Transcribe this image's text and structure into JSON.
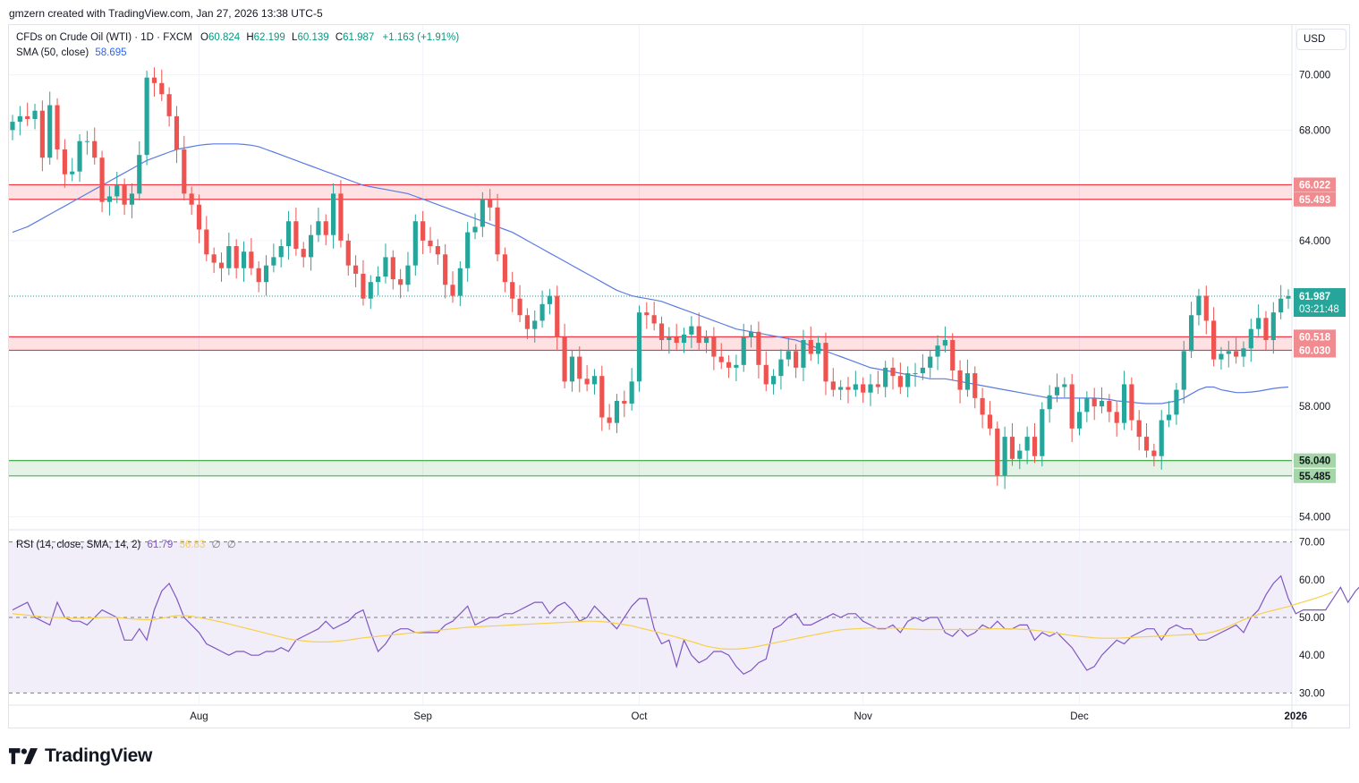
{
  "header": {
    "credit": "gmzern created with TradingView.com, Jan 27, 2026 13:38 UTC-5"
  },
  "legend": {
    "symbol": "CFDs on Crude Oil (WTI) · 1D · FXCM",
    "o_label": "O",
    "o_value": "60.824",
    "h_label": "H",
    "h_value": "62.199",
    "l_label": "L",
    "l_value": "60.139",
    "c_label": "C",
    "c_value": "61.987",
    "change": "+1.163 (+1.91%)",
    "sma_label": "SMA (50, close)",
    "sma_value": "58.695",
    "rsi_label": "RSI (14, close, SMA, 14, 2)",
    "rsi_value": "61.79",
    "rsi_ma_value": "56.83",
    "rsi_extra_1": "∅",
    "rsi_extra_2": "∅"
  },
  "currency": "USD",
  "logo_text": "TradingView",
  "colors": {
    "up": "#26a69a",
    "down": "#ef5350",
    "sma": "#5b7be3",
    "rsi": "#7e57c2",
    "rsi_ma": "#f7d04b",
    "resistance_zone": "#f23645",
    "support_zone": "#4caf50",
    "price_badge": "#26a69a"
  },
  "price_badge": {
    "price": "61.987",
    "countdown": "03:21:48"
  },
  "chart_data": [
    {
      "type": "candlestick",
      "symbol": "WTI",
      "ylim": [
        53.6,
        71.8
      ],
      "yticks": [
        "54.000",
        "56.000",
        "58.000",
        "60.000",
        "62.000",
        "64.000",
        "66.000",
        "68.000",
        "70.000"
      ],
      "xticks": [
        "Aug",
        "Sep",
        "Oct",
        "Nov",
        "Dec",
        "2026"
      ],
      "xtick_index": [
        25,
        55,
        84,
        114,
        143,
        172
      ],
      "grid": true,
      "zones": [
        {
          "kind": "resistance",
          "low": 65.493,
          "high": 66.022,
          "low_label": "65.493",
          "high_label": "66.022"
        },
        {
          "kind": "resistance",
          "low": 60.03,
          "high": 60.518,
          "low_label": "60.030",
          "high_label": "60.518"
        },
        {
          "kind": "support",
          "low": 55.485,
          "high": 56.04,
          "low_label": "55.485",
          "high_label": "56.040"
        }
      ],
      "last_price": 61.987,
      "closes": [
        68.3,
        68.5,
        68.4,
        68.7,
        67.0,
        68.9,
        67.3,
        66.4,
        66.5,
        67.6,
        67.6,
        67.0,
        65.4,
        65.6,
        66.0,
        65.3,
        65.7,
        67.1,
        69.9,
        69.7,
        69.3,
        68.5,
        67.3,
        65.7,
        65.3,
        64.4,
        63.5,
        63.2,
        63.0,
        63.8,
        63.0,
        63.6,
        63.0,
        62.5,
        63.1,
        63.4,
        63.8,
        64.7,
        63.7,
        63.4,
        64.2,
        64.7,
        64.2,
        65.7,
        64.0,
        63.1,
        62.8,
        61.9,
        62.5,
        62.7,
        63.4,
        62.6,
        62.4,
        63.1,
        64.7,
        64.0,
        63.8,
        63.5,
        62.4,
        62.0,
        63.0,
        64.3,
        64.5,
        65.5,
        65.2,
        63.5,
        62.5,
        61.9,
        61.3,
        60.8,
        61.1,
        61.7,
        62.0,
        60.5,
        58.9,
        59.8,
        59.0,
        58.8,
        59.1,
        57.6,
        57.4,
        58.2,
        58.1,
        58.9,
        61.4,
        61.3,
        61.0,
        60.4,
        60.5,
        60.3,
        60.6,
        60.9,
        60.3,
        60.5,
        59.8,
        59.6,
        59.4,
        59.5,
        60.5,
        60.7,
        59.5,
        58.8,
        59.1,
        59.7,
        60.0,
        59.4,
        60.4,
        59.9,
        60.3,
        58.9,
        58.6,
        58.7,
        58.6,
        58.8,
        58.5,
        58.8,
        58.7,
        59.4,
        59.1,
        58.7,
        59.2,
        59.2,
        59.4,
        59.8,
        60.2,
        60.4,
        59.3,
        58.6,
        59.2,
        58.3,
        57.7,
        57.2,
        55.5,
        56.9,
        56.1,
        56.4,
        56.9,
        56.2,
        57.9,
        58.4,
        58.7,
        58.8,
        57.2,
        57.8,
        58.3,
        58.0,
        58.2,
        57.8,
        57.4,
        58.8,
        57.5,
        56.9,
        56.4,
        56.2,
        57.5,
        57.7,
        58.6,
        60.0,
        61.3,
        62.0,
        61.1,
        59.7,
        59.9,
        60.0,
        59.8,
        60.1,
        60.8,
        61.2,
        60.4,
        61.4,
        61.9,
        61.987
      ],
      "sma50": [
        64.3,
        64.4,
        64.5,
        64.65,
        64.8,
        64.95,
        65.1,
        65.25,
        65.4,
        65.55,
        65.7,
        65.85,
        66.0,
        66.15,
        66.3,
        66.45,
        66.6,
        66.75,
        66.9,
        67.0,
        67.1,
        67.2,
        67.3,
        67.35,
        67.4,
        67.45,
        67.48,
        67.5,
        67.5,
        67.5,
        67.5,
        67.48,
        67.45,
        67.4,
        67.3,
        67.2,
        67.1,
        67.0,
        66.9,
        66.8,
        66.7,
        66.6,
        66.5,
        66.4,
        66.3,
        66.2,
        66.1,
        66.0,
        65.95,
        65.9,
        65.85,
        65.8,
        65.75,
        65.7,
        65.6,
        65.5,
        65.4,
        65.3,
        65.2,
        65.1,
        65.0,
        64.9,
        64.8,
        64.7,
        64.6,
        64.5,
        64.4,
        64.3,
        64.15,
        64.0,
        63.85,
        63.7,
        63.55,
        63.4,
        63.25,
        63.1,
        62.95,
        62.8,
        62.65,
        62.5,
        62.35,
        62.2,
        62.1,
        62.0,
        61.95,
        61.9,
        61.85,
        61.8,
        61.7,
        61.6,
        61.5,
        61.4,
        61.3,
        61.2,
        61.1,
        61.0,
        60.9,
        60.8,
        60.75,
        60.7,
        60.65,
        60.6,
        60.55,
        60.5,
        60.45,
        60.4,
        60.3,
        60.2,
        60.1,
        60.0,
        59.9,
        59.8,
        59.7,
        59.6,
        59.5,
        59.4,
        59.35,
        59.3,
        59.25,
        59.2,
        59.15,
        59.1,
        59.05,
        59.0,
        59.0,
        59.0,
        58.95,
        58.9,
        58.85,
        58.8,
        58.75,
        58.7,
        58.65,
        58.6,
        58.55,
        58.5,
        58.45,
        58.4,
        58.35,
        58.3,
        58.3,
        58.3,
        58.3,
        58.3,
        58.3,
        58.3,
        58.28,
        58.25,
        58.2,
        58.18,
        58.15,
        58.12,
        58.1,
        58.1,
        58.1,
        58.15,
        58.2,
        58.3,
        58.45,
        58.6,
        58.7,
        58.7,
        58.6,
        58.55,
        58.5,
        58.5,
        58.52,
        58.55,
        58.6,
        58.65,
        58.68,
        58.7
      ]
    },
    {
      "type": "line",
      "name": "RSI (14, close, SMA, 14, 2)",
      "ylim": [
        27,
        73
      ],
      "yticks": [
        "30.00",
        "40.00",
        "50.00",
        "60.00",
        "70.00"
      ],
      "levels": [
        30,
        50,
        70
      ],
      "series": [
        {
          "name": "RSI",
          "values": [
            52,
            53,
            54,
            50,
            49,
            48,
            54,
            50,
            49,
            49,
            48,
            50,
            52,
            51,
            50,
            44,
            44,
            47,
            44,
            52,
            57,
            59,
            55,
            50,
            48,
            46,
            43,
            42,
            41,
            40,
            41,
            41,
            40,
            40,
            41,
            41,
            42,
            41,
            44,
            45,
            46,
            47,
            49,
            47,
            48,
            49,
            51,
            52,
            46,
            41,
            43,
            46,
            47,
            47,
            46,
            46,
            46,
            46,
            48,
            49,
            51,
            53,
            48,
            49,
            50,
            50,
            51,
            51,
            52,
            53,
            54,
            54,
            51,
            53,
            54,
            52,
            49,
            50,
            53,
            51,
            49,
            47,
            50,
            53,
            55,
            55,
            47,
            43,
            44,
            37,
            44,
            40,
            38,
            39,
            41,
            41,
            40,
            37,
            35,
            36,
            38,
            39,
            47,
            48,
            50,
            51,
            48,
            48,
            49,
            50,
            51,
            50,
            51,
            51,
            49,
            48,
            47,
            47,
            48,
            46,
            49,
            50,
            49,
            50,
            50,
            46,
            45,
            47,
            45,
            46,
            48,
            47,
            49,
            47,
            47,
            48,
            48,
            44,
            46,
            45,
            46,
            44,
            42,
            39,
            36,
            37,
            40,
            42,
            44,
            43,
            45,
            46,
            47,
            47,
            44,
            47,
            48,
            47,
            47,
            44,
            44,
            45,
            46,
            47,
            48,
            46,
            50,
            52,
            56,
            59,
            61,
            55,
            51,
            52,
            52,
            52,
            52,
            55,
            58,
            54,
            57,
            59,
            61.79
          ]
        },
        {
          "name": "RSI-based MA",
          "values": [
            51,
            50.8,
            50.6,
            50.4,
            50.2,
            50.0,
            50.0,
            49.9,
            49.8,
            49.8,
            49.8,
            49.9,
            50.0,
            50.1,
            50.0,
            49.8,
            49.6,
            49.5,
            49.4,
            49.5,
            49.8,
            50.2,
            50.5,
            50.5,
            50.3,
            50.0,
            49.6,
            49.2,
            48.8,
            48.3,
            47.8,
            47.3,
            46.8,
            46.3,
            45.8,
            45.3,
            44.8,
            44.3,
            44.0,
            43.8,
            43.6,
            43.5,
            43.5,
            43.6,
            43.8,
            44.0,
            44.3,
            44.6,
            44.8,
            45.0,
            45.2,
            45.4,
            45.6,
            45.8,
            46.0,
            46.2,
            46.4,
            46.6,
            46.8,
            47.0,
            47.2,
            47.4,
            47.5,
            47.6,
            47.7,
            47.8,
            47.9,
            48.0,
            48.1,
            48.2,
            48.3,
            48.4,
            48.5,
            48.6,
            48.7,
            48.8,
            48.9,
            49.0,
            49.0,
            48.9,
            48.7,
            48.4,
            48.1,
            47.8,
            47.3,
            46.8,
            46.3,
            45.8,
            45.3,
            44.8,
            44.2,
            43.6,
            43.0,
            42.4,
            42.0,
            41.7,
            41.6,
            41.6,
            41.8,
            42.0,
            42.4,
            42.8,
            43.2,
            43.6,
            44.0,
            44.4,
            44.8,
            45.2,
            45.6,
            46.0,
            46.4,
            46.7,
            46.9,
            47.0,
            47.1,
            47.2,
            47.2,
            47.2,
            47.2,
            47.1,
            47.0,
            46.9,
            46.8,
            46.8,
            46.8,
            46.8,
            46.8,
            46.8,
            46.8,
            46.8,
            46.9,
            47.0,
            47.0,
            47.0,
            47.0,
            46.9,
            46.8,
            46.6,
            46.4,
            46.1,
            45.8,
            45.5,
            45.2,
            45.0,
            44.8,
            44.6,
            44.5,
            44.5,
            44.5,
            44.6,
            44.7,
            44.8,
            44.9,
            45.0,
            45.1,
            45.2,
            45.3,
            45.4,
            45.5,
            45.6,
            45.8,
            46.2,
            46.8,
            47.6,
            48.5,
            49.4,
            50.1,
            50.8,
            51.4,
            51.9,
            52.4,
            52.9,
            53.5,
            54.1,
            54.7,
            55.3,
            56.0,
            56.83
          ]
        }
      ]
    }
  ]
}
